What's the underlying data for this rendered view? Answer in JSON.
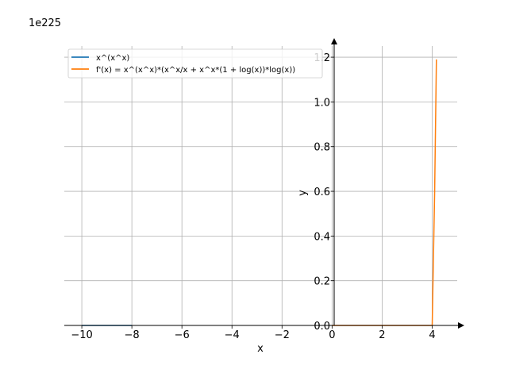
{
  "chart_data": {
    "type": "line",
    "xlabel": "x",
    "ylabel": "y",
    "y_offset_text": "1e225",
    "xlim": [
      -10.7,
      5.0
    ],
    "ylim": [
      0.0,
      1.25
    ],
    "x_ticks": [
      -10,
      -8,
      -6,
      -4,
      -2,
      0,
      2,
      4
    ],
    "x_tick_labels": [
      "−10",
      "−8",
      "−6",
      "−4",
      "−2",
      "0",
      "2",
      "4"
    ],
    "y_ticks": [
      0.0,
      0.2,
      0.4,
      0.6,
      0.8,
      1.0,
      1.2
    ],
    "y_tick_labels": [
      "0.0",
      "0.2",
      "0.4",
      "0.6",
      "0.8",
      "1.0",
      "1.2"
    ],
    "grid": true,
    "legend_position": "top-left",
    "series": [
      {
        "name": "x^(x^x)",
        "color": "#1f77b4",
        "x": [
          -10.0,
          -9.5,
          -9.0,
          -8.5,
          -8.0
        ],
        "y": [
          0,
          0,
          0,
          0,
          0
        ]
      },
      {
        "name": "f'(x) = x^(x^x)*(x^x/x + x^x*(1 + log(x))*log(x))",
        "color": "#ff7f0e",
        "x": [
          0.0,
          1.0,
          2.0,
          3.0,
          3.8,
          3.95,
          4.0,
          4.1,
          4.17
        ],
        "y": [
          0,
          0,
          0,
          0,
          0,
          0,
          0.0,
          0.6,
          1.19
        ]
      }
    ]
  }
}
